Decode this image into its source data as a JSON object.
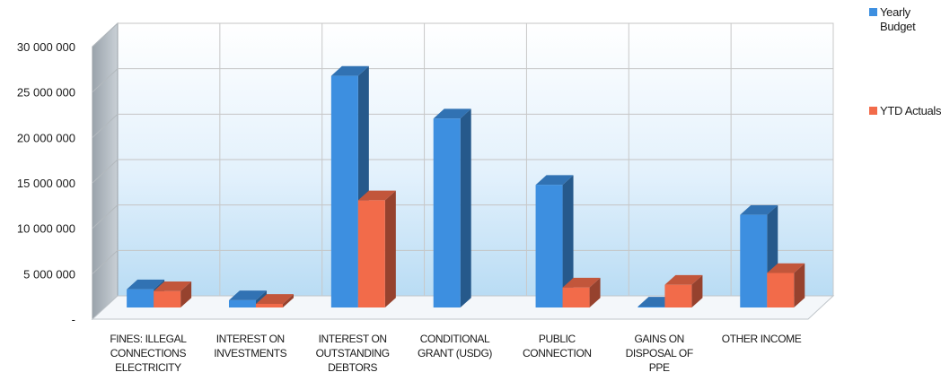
{
  "chart_data": {
    "type": "bar",
    "title": "",
    "xlabel": "",
    "ylabel": "",
    "ylim": [
      0,
      30000000
    ],
    "yticks": [
      {
        "value": 0,
        "label": "-"
      },
      {
        "value": 5000000,
        "label": "5 000 000"
      },
      {
        "value": 10000000,
        "label": "10 000 000"
      },
      {
        "value": 15000000,
        "label": "15 000 000"
      },
      {
        "value": 20000000,
        "label": "20 000 000"
      },
      {
        "value": 25000000,
        "label": "25 000 000"
      },
      {
        "value": 30000000,
        "label": "30 000 000"
      }
    ],
    "categories": [
      [
        "FINES: ILLEGAL",
        "CONNECTIONS",
        "ELECTRICITY"
      ],
      [
        "INTEREST ON",
        "INVESTMENTS"
      ],
      [
        "INTEREST ON",
        "OUTSTANDING",
        "DEBTORS"
      ],
      [
        "CONDITIONAL",
        "GRANT (USDG)"
      ],
      [
        "PUBLIC",
        "CONNECTION"
      ],
      [
        "GAINS ON",
        "DISPOSAL OF",
        "PPE"
      ],
      [
        "OTHER INCOME"
      ]
    ],
    "series": [
      {
        "name": "Yearly Budget",
        "legend_lines": [
          "Yearly",
          "Budget"
        ],
        "color": "#3d8fe0",
        "values": [
          2000000,
          800000,
          25500000,
          20800000,
          13500000,
          100000,
          10200000
        ]
      },
      {
        "name": "YTD Actuals",
        "legend_lines": [
          "YTD Actuals"
        ],
        "color": "#f26b4a",
        "values": [
          1800000,
          400000,
          11800000,
          0,
          2200000,
          2500000,
          3800000
        ]
      }
    ],
    "grid": true,
    "legend": "right",
    "style": "3d-clustered-column"
  }
}
